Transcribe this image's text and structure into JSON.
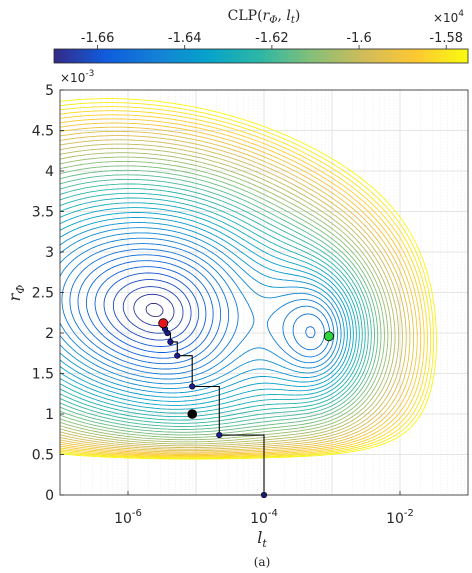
{
  "chart_data": {
    "type": "contour",
    "title": "",
    "caption": "(a)",
    "xlabel": "l_t",
    "ylabel": "r_Φ",
    "xscale": "log",
    "xlim": [
      1e-07,
      0.1
    ],
    "ylim": [
      0,
      0.005
    ],
    "y_multiplier": "×10^-3",
    "x_ticks": [
      {
        "value": 1e-06,
        "base": "10",
        "exp": "-6"
      },
      {
        "value": 0.0001,
        "base": "10",
        "exp": "-4"
      },
      {
        "value": 0.01,
        "base": "10",
        "exp": "-2"
      }
    ],
    "y_ticks": [
      {
        "value": 0,
        "label": "0"
      },
      {
        "value": 0.0005,
        "label": "0.5"
      },
      {
        "value": 0.001,
        "label": "1"
      },
      {
        "value": 0.0015,
        "label": "1.5"
      },
      {
        "value": 0.002,
        "label": "2"
      },
      {
        "value": 0.0025,
        "label": "2.5"
      },
      {
        "value": 0.003,
        "label": "3"
      },
      {
        "value": 0.0035,
        "label": "3.5"
      },
      {
        "value": 0.004,
        "label": "4"
      },
      {
        "value": 0.0045,
        "label": "4.5"
      },
      {
        "value": 0.005,
        "label": "5"
      }
    ],
    "grid": true,
    "colorbar": {
      "label": "CLP(r_Φ, l_t)",
      "placement": "top",
      "multiplier": "×10^4",
      "colormap": "parula",
      "range": [
        -1.67,
        -1.575
      ],
      "ticks": [
        {
          "value": -1.66,
          "label": "-1.66"
        },
        {
          "value": -1.64,
          "label": "-1.64"
        },
        {
          "value": -1.62,
          "label": "-1.62"
        },
        {
          "value": -1.6,
          "label": "-1.6"
        },
        {
          "value": -1.58,
          "label": "-1.58"
        }
      ]
    },
    "colormap_stops": [
      "#352a87",
      "#0f5cdd",
      "#1481d6",
      "#06a4ca",
      "#2eb7a4",
      "#87bf77",
      "#d1bb59",
      "#fec832",
      "#f9fb0e"
    ],
    "contour_levels": 42,
    "path": [
      {
        "lt": 0.0001,
        "r": 0.0
      },
      {
        "lt": 0.0001,
        "r": 0.00074
      },
      {
        "lt": 2.2e-05,
        "r": 0.00074
      },
      {
        "lt": 2.2e-05,
        "r": 0.00134
      },
      {
        "lt": 8.8e-06,
        "r": 0.00134
      },
      {
        "lt": 8.8e-06,
        "r": 0.00172
      },
      {
        "lt": 5.3e-06,
        "r": 0.00172
      },
      {
        "lt": 5.3e-06,
        "r": 0.00189
      },
      {
        "lt": 4.2e-06,
        "r": 0.00189
      },
      {
        "lt": 4.2e-06,
        "r": 0.002
      },
      {
        "lt": 3.8e-06,
        "r": 0.002
      },
      {
        "lt": 3.8e-06,
        "r": 0.00205
      },
      {
        "lt": 3.5e-06,
        "r": 0.00205
      },
      {
        "lt": 3.5e-06,
        "r": 0.00212
      },
      {
        "lt": 3.3e-06,
        "r": 0.00212
      }
    ],
    "path_points": [
      {
        "lt": 0.0001,
        "r": 0.0
      },
      {
        "lt": 2.2e-05,
        "r": 0.00074
      },
      {
        "lt": 8.8e-06,
        "r": 0.00134
      },
      {
        "lt": 5.3e-06,
        "r": 0.00172
      },
      {
        "lt": 4.2e-06,
        "r": 0.00189
      },
      {
        "lt": 3.8e-06,
        "r": 0.002
      },
      {
        "lt": 3.5e-06,
        "r": 0.00205
      }
    ],
    "start_point": {
      "lt": 8.8e-06,
      "r": 0.001
    },
    "global_minimum": {
      "lt": 3.3e-06,
      "r": 0.00212,
      "color": "#e8141c"
    },
    "local_minimum": {
      "lt": 0.0009,
      "r": 0.00196,
      "color": "#2fd43a"
    }
  }
}
